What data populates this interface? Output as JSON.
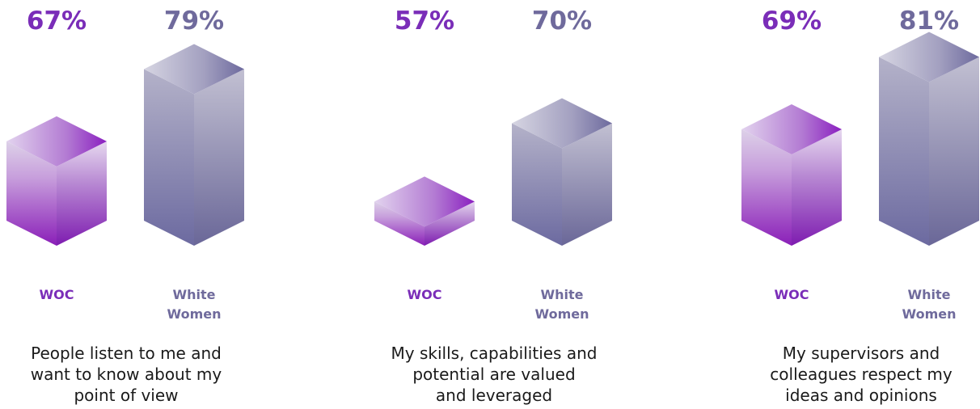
{
  "colors": {
    "woc_text": "#7a2db8",
    "white_text": "#6f6a9c",
    "caption_text": "#1a1a1a"
  },
  "chart_data": {
    "type": "bar",
    "value_suffix": "%",
    "series_labels": [
      [
        "WOC"
      ],
      [
        "White",
        "Women"
      ]
    ],
    "groups": [
      {
        "caption": [
          "People listen to me and",
          "want to know about my",
          "point of view"
        ],
        "values": [
          67,
          79
        ]
      },
      {
        "caption": [
          "My skills, capabilities and",
          "potential are valued",
          "and leveraged"
        ],
        "values": [
          57,
          70
        ]
      },
      {
        "caption": [
          "My supervisors and",
          "colleagues respect my",
          "ideas and opinions"
        ],
        "values": [
          69,
          81
        ]
      }
    ]
  }
}
